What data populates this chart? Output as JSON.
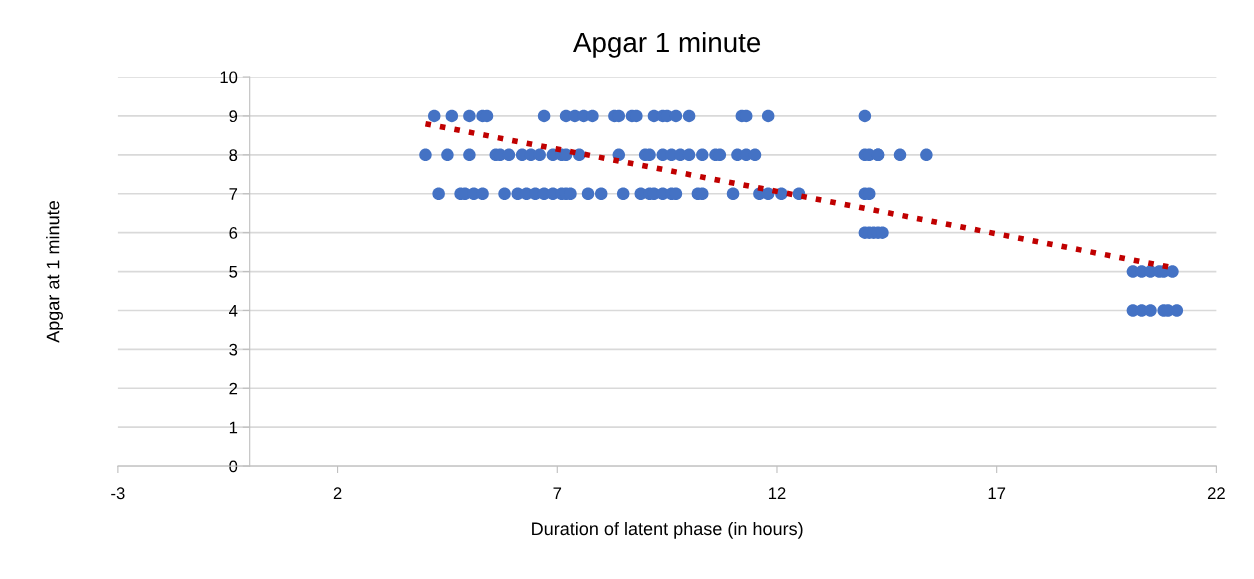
{
  "chart_data": {
    "type": "scatter",
    "title": "Apgar 1 minute",
    "xlabel": "Duration of latent phase (in hours)",
    "ylabel": "Apgar at 1 minute",
    "xlim": [
      -3,
      22
    ],
    "xticks": [
      -3,
      2,
      7,
      12,
      17,
      22
    ],
    "ylim": [
      0,
      10
    ],
    "yticks": [
      0,
      1,
      2,
      3,
      4,
      5,
      6,
      7,
      8,
      9,
      10
    ],
    "grid": "y",
    "marker": "circle",
    "series": [
      {
        "color": "#4472c4",
        "x": [
          4.2,
          4.6,
          5.0,
          5.3,
          5.4,
          6.7,
          7.2,
          7.4,
          7.6,
          7.8,
          8.3,
          8.4,
          8.7,
          8.8,
          9.2,
          9.4,
          9.5,
          9.7,
          10.0,
          11.2,
          11.3,
          11.8,
          14.0,
          4.0,
          4.5,
          5.0,
          5.6,
          5.7,
          5.9,
          6.2,
          6.4,
          6.6,
          6.9,
          7.1,
          7.2,
          7.5,
          8.4,
          9.0,
          9.1,
          9.4,
          9.6,
          9.8,
          10.0,
          10.3,
          10.6,
          10.7,
          11.1,
          11.3,
          11.5,
          14.0,
          14.1,
          14.3,
          14.3,
          14.8,
          15.4,
          4.3,
          4.8,
          4.9,
          5.1,
          5.3,
          5.8,
          6.1,
          6.3,
          6.5,
          6.7,
          6.9,
          7.1,
          7.2,
          7.3,
          7.7,
          8.0,
          8.5,
          8.9,
          9.1,
          9.2,
          9.4,
          9.6,
          9.7,
          10.2,
          10.3,
          11.0,
          11.6,
          11.8,
          12.1,
          12.5,
          14.0,
          14.1,
          14.0,
          14.1,
          14.2,
          14.3,
          14.4,
          20.1,
          20.3,
          20.5,
          20.7,
          20.8,
          21.0,
          20.1,
          20.3,
          20.5,
          20.8,
          20.9,
          21.1
        ],
        "values": [
          9,
          9,
          9,
          9,
          9,
          9,
          9,
          9,
          9,
          9,
          9,
          9,
          9,
          9,
          9,
          9,
          9,
          9,
          9,
          9,
          9,
          9,
          9,
          8,
          8,
          8,
          8,
          8,
          8,
          8,
          8,
          8,
          8,
          8,
          8,
          8,
          8,
          8,
          8,
          8,
          8,
          8,
          8,
          8,
          8,
          8,
          8,
          8,
          8,
          8,
          8,
          8,
          8,
          8,
          8,
          7,
          7,
          7,
          7,
          7,
          7,
          7,
          7,
          7,
          7,
          7,
          7,
          7,
          7,
          7,
          7,
          7,
          7,
          7,
          7,
          7,
          7,
          7,
          7,
          7,
          7,
          7,
          7,
          7,
          7,
          7,
          7,
          6,
          6,
          6,
          6,
          6,
          5,
          5,
          5,
          5,
          5,
          5,
          4,
          4,
          4,
          4,
          4,
          4
        ]
      },
      {
        "type": "line",
        "color": "#c00000",
        "line_style": "dotted",
        "marker": "none",
        "x": [
          4.0,
          21.0
        ],
        "values": [
          8.8,
          5.1
        ]
      }
    ]
  }
}
